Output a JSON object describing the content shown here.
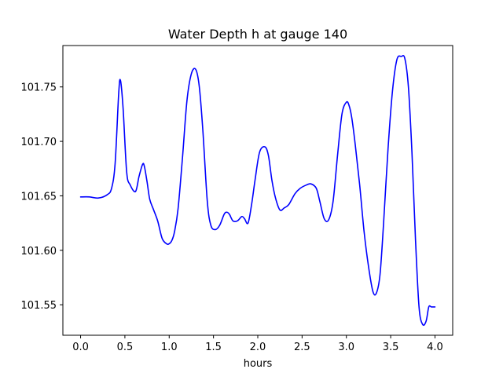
{
  "chart_data": {
    "type": "line",
    "title": "Water Depth h at gauge 140",
    "xlabel": "hours",
    "ylabel": "",
    "xlim": [
      -0.2,
      4.2
    ],
    "ylim": [
      101.522,
      101.788
    ],
    "xticks": [
      0.0,
      0.5,
      1.0,
      1.5,
      2.0,
      2.5,
      3.0,
      3.5,
      4.0
    ],
    "xtick_labels": [
      "0.0",
      "0.5",
      "1.0",
      "1.5",
      "2.0",
      "2.5",
      "3.0",
      "3.5",
      "4.0"
    ],
    "yticks": [
      101.55,
      101.6,
      101.65,
      101.7,
      101.75
    ],
    "ytick_labels": [
      "101.55",
      "101.60",
      "101.65",
      "101.70",
      "101.75"
    ],
    "grid": false,
    "series": [
      {
        "color": "#0000ff",
        "x": [
          0.0,
          0.1,
          0.2,
          0.3,
          0.35,
          0.39,
          0.43,
          0.45,
          0.48,
          0.52,
          0.56,
          0.62,
          0.66,
          0.7,
          0.72,
          0.75,
          0.78,
          0.82,
          0.87,
          0.92,
          0.97,
          1.0,
          1.03,
          1.06,
          1.1,
          1.15,
          1.2,
          1.25,
          1.3,
          1.34,
          1.38,
          1.43,
          1.47,
          1.52,
          1.57,
          1.62,
          1.65,
          1.68,
          1.72,
          1.77,
          1.82,
          1.85,
          1.89,
          1.93,
          1.97,
          2.02,
          2.08,
          2.12,
          2.16,
          2.2,
          2.25,
          2.3,
          2.35,
          2.42,
          2.48,
          2.55,
          2.6,
          2.66,
          2.7,
          2.75,
          2.8,
          2.85,
          2.9,
          2.95,
          3.0,
          3.03,
          3.06,
          3.1,
          3.15,
          3.2,
          3.25,
          3.3,
          3.34,
          3.38,
          3.42,
          3.47,
          3.52,
          3.57,
          3.62,
          3.66,
          3.7,
          3.74,
          3.78,
          3.82,
          3.86,
          3.9,
          3.93,
          3.96,
          4.0
        ],
        "y": [
          101.649,
          101.649,
          101.648,
          101.651,
          101.657,
          101.68,
          101.744,
          101.756,
          101.73,
          101.672,
          101.66,
          101.654,
          101.668,
          101.679,
          101.677,
          101.663,
          101.647,
          101.638,
          101.627,
          101.611,
          101.606,
          101.606,
          101.609,
          101.617,
          101.638,
          101.685,
          101.737,
          101.762,
          101.766,
          101.75,
          101.71,
          101.645,
          101.623,
          101.619,
          101.623,
          101.633,
          101.635,
          101.633,
          101.627,
          101.627,
          101.631,
          101.629,
          101.625,
          101.642,
          101.665,
          101.69,
          101.695,
          101.687,
          101.664,
          101.648,
          101.637,
          101.639,
          101.642,
          101.652,
          101.657,
          101.66,
          101.661,
          101.657,
          101.645,
          101.629,
          101.628,
          101.645,
          101.687,
          101.725,
          101.736,
          101.733,
          101.722,
          101.697,
          101.66,
          101.617,
          101.585,
          101.562,
          101.561,
          101.578,
          101.625,
          101.693,
          101.746,
          101.775,
          101.778,
          101.776,
          101.75,
          101.69,
          101.61,
          101.548,
          101.532,
          101.535,
          101.548,
          101.548,
          101.548
        ]
      }
    ]
  }
}
